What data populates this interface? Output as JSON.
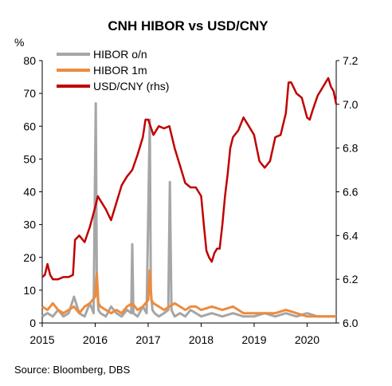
{
  "chart_data": {
    "type": "line",
    "title": "CNH HIBOR  vs USD/CNY",
    "left_axis_unit": "%",
    "source": "Source: Bloomberg, DBS",
    "x_tick_labels": [
      "2015",
      "2016",
      "2017",
      "2018",
      "2019",
      "2020"
    ],
    "x_ticks": [
      2015,
      2016,
      2017,
      2018,
      2019,
      2020
    ],
    "xlim": [
      2015.0,
      2020.55
    ],
    "ylim_left": [
      0,
      80
    ],
    "y_ticks_left": [
      0,
      10,
      20,
      30,
      40,
      50,
      60,
      70,
      80
    ],
    "ylim_right": [
      6.0,
      7.2
    ],
    "y_ticks_right": [
      "6.0",
      "6.2",
      "6.4",
      "6.6",
      "6.8",
      "7.0",
      "7.2"
    ],
    "y_ticks_right_values": [
      6.0,
      6.2,
      6.4,
      6.6,
      6.8,
      7.0,
      7.2
    ],
    "legend_position": "top-left",
    "series": [
      {
        "name": "HIBOR o/n",
        "axis": "left",
        "color": "#a6a6a6",
        "x": [
          2015.0,
          2015.1,
          2015.2,
          2015.3,
          2015.4,
          2015.5,
          2015.6,
          2015.7,
          2015.8,
          2015.9,
          2015.97,
          2016.01,
          2016.03,
          2016.06,
          2016.1,
          2016.2,
          2016.3,
          2016.4,
          2016.5,
          2016.6,
          2016.68,
          2016.7,
          2016.72,
          2016.8,
          2016.9,
          2016.97,
          2017.03,
          2017.05,
          2017.08,
          2017.12,
          2017.2,
          2017.3,
          2017.38,
          2017.41,
          2017.44,
          2017.5,
          2017.6,
          2017.7,
          2017.8,
          2017.9,
          2018.0,
          2018.2,
          2018.4,
          2018.6,
          2018.8,
          2019.0,
          2019.2,
          2019.4,
          2019.6,
          2019.8,
          2020.0,
          2020.2,
          2020.4,
          2020.55
        ],
        "y": [
          2,
          3,
          2,
          4,
          2,
          3,
          8,
          3,
          2,
          6,
          3,
          67,
          14,
          4,
          3,
          2,
          5,
          3,
          2,
          4,
          3,
          24,
          3,
          2,
          5,
          3,
          62,
          10,
          4,
          3,
          2,
          3,
          4,
          43,
          4,
          2,
          3,
          2,
          4,
          3,
          2,
          3,
          2,
          3,
          2,
          2,
          3,
          2,
          3,
          2,
          3,
          2,
          2,
          2
        ]
      },
      {
        "name": "HIBOR 1m",
        "axis": "left",
        "color": "#ed8b3d",
        "x": [
          2015.0,
          2015.1,
          2015.2,
          2015.3,
          2015.4,
          2015.5,
          2015.6,
          2015.7,
          2015.8,
          2015.9,
          2016.0,
          2016.03,
          2016.06,
          2016.1,
          2016.2,
          2016.3,
          2016.4,
          2016.5,
          2016.6,
          2016.7,
          2016.8,
          2016.9,
          2017.0,
          2017.03,
          2017.06,
          2017.1,
          2017.2,
          2017.3,
          2017.4,
          2017.5,
          2017.6,
          2017.7,
          2017.8,
          2017.9,
          2018.0,
          2018.2,
          2018.4,
          2018.6,
          2018.8,
          2019.0,
          2019.2,
          2019.4,
          2019.6,
          2019.8,
          2020.0,
          2020.2,
          2020.4,
          2020.55
        ],
        "y": [
          5,
          4,
          6,
          4,
          3,
          4,
          5,
          3,
          5,
          6,
          8,
          15,
          6,
          5,
          4,
          3,
          4,
          3,
          5,
          6,
          4,
          5,
          7,
          16,
          7,
          6,
          5,
          4,
          5,
          6,
          5,
          4,
          5,
          5,
          4,
          5,
          4,
          5,
          3,
          3,
          3,
          3,
          4,
          3,
          2,
          2,
          2,
          2
        ]
      },
      {
        "name": "USD/CNY (rhs)",
        "axis": "right",
        "color": "#c00000",
        "x": [
          2015.0,
          2015.05,
          2015.1,
          2015.15,
          2015.2,
          2015.3,
          2015.4,
          2015.5,
          2015.58,
          2015.6,
          2015.62,
          2015.7,
          2015.8,
          2015.9,
          2016.0,
          2016.05,
          2016.1,
          2016.2,
          2016.3,
          2016.4,
          2016.5,
          2016.6,
          2016.7,
          2016.8,
          2016.9,
          2016.95,
          2017.0,
          2017.1,
          2017.2,
          2017.3,
          2017.4,
          2017.5,
          2017.6,
          2017.7,
          2017.8,
          2017.9,
          2018.0,
          2018.05,
          2018.1,
          2018.15,
          2018.2,
          2018.25,
          2018.3,
          2018.35,
          2018.4,
          2018.45,
          2018.5,
          2018.55,
          2018.6,
          2018.7,
          2018.8,
          2018.9,
          2019.0,
          2019.1,
          2019.2,
          2019.3,
          2019.4,
          2019.5,
          2019.6,
          2019.65,
          2019.7,
          2019.8,
          2019.9,
          2020.0,
          2020.05,
          2020.1,
          2020.2,
          2020.3,
          2020.4,
          2020.45,
          2020.5,
          2020.55
        ],
        "y": [
          6.21,
          6.22,
          6.27,
          6.22,
          6.2,
          6.2,
          6.21,
          6.21,
          6.22,
          6.3,
          6.38,
          6.4,
          6.37,
          6.44,
          6.53,
          6.58,
          6.56,
          6.52,
          6.47,
          6.55,
          6.63,
          6.67,
          6.7,
          6.77,
          6.85,
          6.93,
          6.93,
          6.86,
          6.9,
          6.89,
          6.9,
          6.8,
          6.72,
          6.64,
          6.62,
          6.62,
          6.58,
          6.45,
          6.33,
          6.3,
          6.28,
          6.32,
          6.34,
          6.34,
          6.45,
          6.58,
          6.68,
          6.8,
          6.85,
          6.88,
          6.94,
          6.9,
          6.86,
          6.74,
          6.71,
          6.74,
          6.85,
          6.86,
          6.96,
          7.1,
          7.1,
          7.05,
          7.03,
          6.94,
          6.93,
          6.97,
          7.04,
          7.08,
          7.12,
          7.08,
          7.06,
          7.0
        ]
      }
    ]
  }
}
